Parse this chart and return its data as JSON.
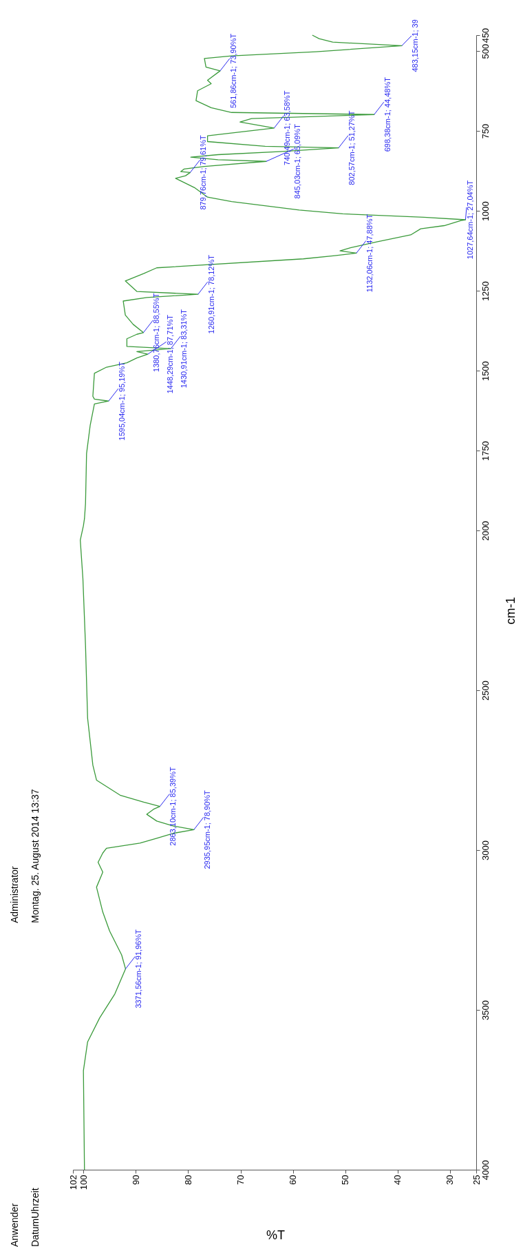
{
  "chart_data": {
    "type": "line",
    "xlabel": "%T",
    "ylabel": "cm-1",
    "xlim": [
      102,
      25
    ],
    "xticks": [
      102,
      100,
      90,
      80,
      70,
      60,
      50,
      40,
      30,
      25
    ],
    "ylim": [
      4000,
      450
    ],
    "yticks": [
      4000,
      3500,
      3000,
      2500,
      2000,
      1750,
      1500,
      1250,
      1000,
      750,
      500,
      450
    ],
    "grid": false,
    "series": [
      {
        "color": "#3a9a3a",
        "x": [
          99.8,
          100,
          99.2,
          96.9,
          94,
          91.96,
          92.7,
          95,
          96.3,
          97.5,
          96.3,
          97.2,
          96.3,
          95.6,
          89.2,
          86,
          82.7,
          78.9,
          82.7,
          86,
          87.9,
          86.6,
          85.39,
          88.5,
          93,
          97.5,
          98.2,
          99.2,
          99.6,
          100.1,
          100.6,
          100,
          99.8,
          99.6,
          99.4,
          98.7,
          97.9,
          95.19,
          97.9,
          98.2,
          97.9,
          95.6,
          91.7,
          89.8,
          87.71,
          89.8,
          83.31,
          91.7,
          91.7,
          89.8,
          88.55,
          90.5,
          92,
          92.4,
          87.9,
          78.12,
          89.8,
          92,
          88.5,
          86,
          58,
          52,
          47.88,
          51,
          49,
          44,
          37.5,
          35.6,
          31.1,
          27.9,
          27.04,
          35,
          50.5,
          58.8,
          71.7,
          76.3,
          78.8,
          82.4,
          80.5,
          79.61,
          81.4,
          80.8,
          76.9,
          65.09,
          74.3,
          79.5,
          74.3,
          62,
          51.27,
          65.3,
          76.3,
          76.3,
          63.58,
          70.1,
          67.9,
          44.48,
          71.7,
          75.6,
          78.5,
          78.2,
          75.6,
          76.3,
          73.9,
          76.6,
          76.9,
          71.7,
          55.6,
          39.2,
          52.4,
          55,
          56.3
        ],
        "values": [
          4000,
          3690,
          3600,
          3525,
          3450,
          3371.56,
          3328,
          3253,
          3194,
          3116,
          3069,
          3038,
          3009,
          2994,
          2978,
          2963,
          2947,
          2935.95,
          2925,
          2909,
          2888,
          2872,
          2863.1,
          2850,
          2828,
          2781,
          2734,
          2587,
          2360,
          2150,
          2030,
          1985,
          1963,
          1916,
          1759,
          1670,
          1604,
          1595.04,
          1589,
          1580,
          1508,
          1489,
          1475,
          1460,
          1448.29,
          1440,
          1430.91,
          1424,
          1400,
          1386,
          1380.76,
          1355,
          1326,
          1282,
          1271,
          1260.91,
          1252,
          1219,
          1196,
          1178,
          1150,
          1140,
          1132.06,
          1125,
          1115,
          1097,
          1075,
          1056,
          1046,
          1030,
          1027.64,
          1020,
          1009,
          997,
          971,
          957,
          927,
          898,
          890,
          879.76,
          877,
          869,
          861,
          845.03,
          840,
          832,
          824,
          814,
          802.57,
          798,
          783,
          765,
          740.49,
          722,
          711,
          698.38,
          692,
          677,
          655,
          624,
          602,
          591,
          561.86,
          550,
          523,
          515,
          502,
          483.15,
          472,
          461,
          450
        ]
      }
    ],
    "annotations": [
      "Anwender",
      "DatumUhrzeit",
      "Administrator",
      "Montag. 25. August 2014 13:37",
      {
        "text": "3371,56cm-1; 91,96%T",
        "x": 91.96,
        "y": 3371.56
      },
      {
        "text": "2935,95cm-1; 78,90%T",
        "x": 78.9,
        "y": 2935.95
      },
      {
        "text": "2863,10cm-1; 85,39%T",
        "x": 85.39,
        "y": 2863.1
      },
      {
        "text": "1595,04cm-1; 95,19%T",
        "x": 95.19,
        "y": 1595.04
      },
      {
        "text": "1448,29cm-1; 87,71%T",
        "x": 87.71,
        "y": 1448.29
      },
      {
        "text": "1430,91cm-1; 83,31%T",
        "x": 83.31,
        "y": 1430.91
      },
      {
        "text": "1380,76cm-1; 88,55%T",
        "x": 88.55,
        "y": 1380.76
      },
      {
        "text": "1260,91cm-1; 78,12%T",
        "x": 78.12,
        "y": 1260.91
      },
      {
        "text": "1132,06cm-1; 47,88%T",
        "x": 47.88,
        "y": 1132.06
      },
      {
        "text": "1027,64cm-1; 27,04%T",
        "x": 27.04,
        "y": 1027.64
      },
      {
        "text": "879,76cm-1; 79,61%T",
        "x": 79.61,
        "y": 879.76
      },
      {
        "text": "845,03cm-1; 65,09%T",
        "x": 65.09,
        "y": 845.03
      },
      {
        "text": "802,57cm-1; 51,27%T",
        "x": 51.27,
        "y": 802.57
      },
      {
        "text": "740,49cm-1; 63,58%T",
        "x": 63.58,
        "y": 740.49
      },
      {
        "text": "698,38cm-1; 44,48%T",
        "x": 44.48,
        "y": 698.38
      },
      {
        "text": "561,86cm-1; 73,90%T",
        "x": 73.9,
        "y": 561.86
      },
      {
        "text": "483,15cm-1; 39",
        "x": 39.2,
        "y": 483.15
      }
    ]
  }
}
